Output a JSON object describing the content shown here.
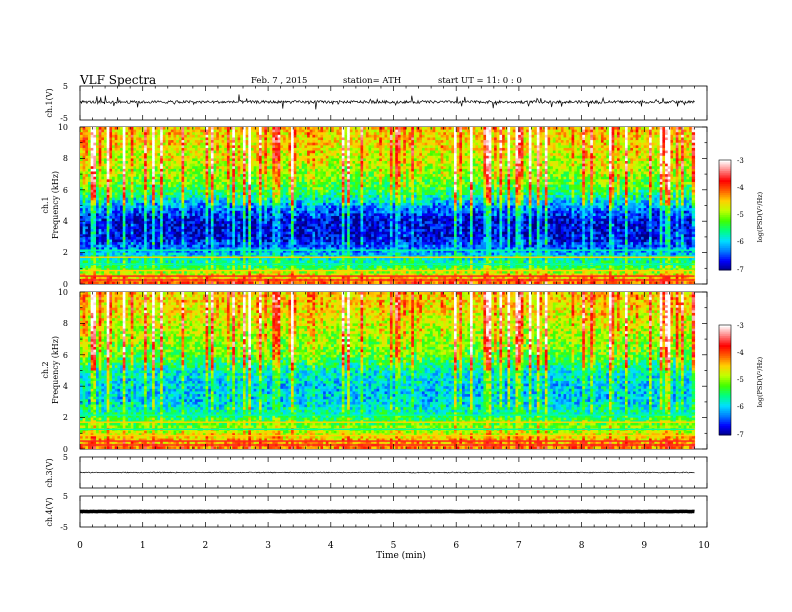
{
  "header": {
    "title": "VLF Spectra",
    "date": "Feb. 7 , 2015",
    "station": "station= ATH",
    "start": "start UT =   11: 0  : 0"
  },
  "panels": [
    {
      "id": "ch1",
      "ylabel": "ch.1(V)",
      "ticks": [
        "5",
        "-5"
      ]
    },
    {
      "id": "ch1-spec",
      "ylabel_line1": "ch.1",
      "ylabel_line2": "Frequency (kHz)",
      "ticks": [
        "10",
        "8",
        "6",
        "4",
        "2",
        "0"
      ]
    },
    {
      "id": "ch2-spec",
      "ylabel_line1": "ch.2",
      "ylabel_line2": "Frequency (kHz)",
      "ticks": [
        "10",
        "8",
        "6",
        "4",
        "2",
        "0"
      ]
    },
    {
      "id": "ch3",
      "ylabel": "ch.3(V)",
      "ticks": [
        "5"
      ]
    },
    {
      "id": "ch4",
      "ylabel": "ch.4(V)",
      "ticks": [
        "5",
        "-5"
      ]
    }
  ],
  "colorbar": {
    "label": "log(PSD(V²/Hz)",
    "ticks": [
      "-3",
      "-4",
      "-5",
      "-6",
      "-7"
    ],
    "colors": [
      "#000080",
      "#0000ff",
      "#0080ff",
      "#00e0ff",
      "#00ff80",
      "#40ff00",
      "#c0ff00",
      "#ffd000",
      "#ff6000",
      "#ff0000",
      "#ff8080",
      "#ffffff"
    ]
  },
  "xaxis": {
    "label": "Time  (min)",
    "ticks": [
      "0",
      "1",
      "2",
      "3",
      "4",
      "5",
      "6",
      "7",
      "8",
      "9",
      "10"
    ]
  },
  "chart_data": {
    "type": "heatmap",
    "title": "VLF Spectra",
    "xlabel": "Time  (min)",
    "xlim": [
      0,
      10
    ],
    "data_end_min": 9.8,
    "waveforms": [
      {
        "channel": "ch.1(V)",
        "ylim": [
          -5,
          5
        ],
        "baseline": 0.3,
        "amplitude": 0.8
      },
      {
        "channel": "ch.3(V)",
        "ylim": [
          -5,
          5
        ],
        "baseline": 0,
        "amplitude": 0.3
      },
      {
        "channel": "ch.4(V)",
        "ylim": [
          -5,
          5
        ],
        "baseline": 0,
        "amplitude": 0.1
      }
    ],
    "spectrograms": [
      {
        "channel": "ch.1",
        "ylabel": "Frequency (kHz)",
        "ylim": [
          0,
          10
        ],
        "zlabel": "log(PSD(V²/Hz)",
        "zlim": [
          -7,
          -3
        ],
        "band_profile_khz_logpsd": [
          [
            0.0,
            -4.0
          ],
          [
            0.5,
            -4.6
          ],
          [
            1.0,
            -5.4
          ],
          [
            1.6,
            -5.8
          ],
          [
            2.2,
            -6.3
          ],
          [
            3.0,
            -6.8
          ],
          [
            4.0,
            -6.8
          ],
          [
            5.0,
            -6.2
          ],
          [
            6.0,
            -5.4
          ],
          [
            7.0,
            -5.0
          ],
          [
            8.0,
            -4.8
          ],
          [
            9.0,
            -4.6
          ],
          [
            10.0,
            -4.5
          ]
        ]
      },
      {
        "channel": "ch.2",
        "ylabel": "Frequency (kHz)",
        "ylim": [
          0,
          10
        ],
        "zlabel": "log(PSD(V²/Hz)",
        "zlim": [
          -7,
          -3
        ],
        "band_profile_khz_logpsd": [
          [
            0.0,
            -4.2
          ],
          [
            0.5,
            -4.4
          ],
          [
            1.0,
            -4.8
          ],
          [
            1.6,
            -5.2
          ],
          [
            2.2,
            -5.6
          ],
          [
            3.0,
            -6.0
          ],
          [
            4.0,
            -6.0
          ],
          [
            5.0,
            -5.8
          ],
          [
            6.0,
            -5.2
          ],
          [
            7.0,
            -5.0
          ],
          [
            8.0,
            -4.8
          ],
          [
            9.0,
            -4.6
          ],
          [
            10.0,
            -4.5
          ]
        ]
      }
    ]
  }
}
